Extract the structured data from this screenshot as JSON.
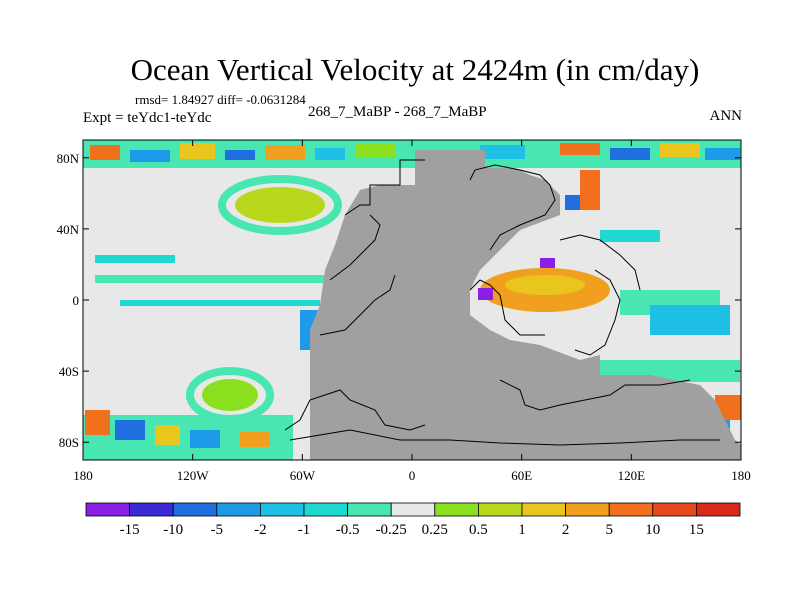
{
  "chart_data": {
    "type": "heatmap",
    "title": "Ocean Vertical Velocity at 2424m (in cm/day)",
    "stats": "rmsd= 1.84927 diff= -0.0631284",
    "left_label": "Expt = teYdc1-teYdc",
    "center_label": "268_7_MaBP - 268_7_MaBP",
    "right_label": "ANN",
    "x_ticks": [
      "180",
      "120W",
      "60W",
      "0",
      "60E",
      "120E",
      "180"
    ],
    "y_ticks": [
      "80N",
      "40N",
      "0",
      "40S",
      "80S"
    ],
    "xlim": [
      -180,
      180
    ],
    "ylim": [
      -90,
      90
    ],
    "colorbar": {
      "labels": [
        "-15",
        "-10",
        "-5",
        "-2",
        "-1",
        "-0.5",
        "-0.25",
        "0.25",
        "0.5",
        "1",
        "2",
        "5",
        "10",
        "15"
      ],
      "colors": [
        "#8a1fe6",
        "#3a2bd6",
        "#1f6fe0",
        "#1e9be8",
        "#1fc0e8",
        "#1fd8cf",
        "#48e6b0",
        "#e8e8e8",
        "#8ae01e",
        "#b8d81e",
        "#e8c61e",
        "#f0a01e",
        "#f0701e",
        "#e84a1e",
        "#d82a1a"
      ]
    },
    "land_color": "#a0a0a0",
    "zero_band_color": "#e8e8e8"
  }
}
